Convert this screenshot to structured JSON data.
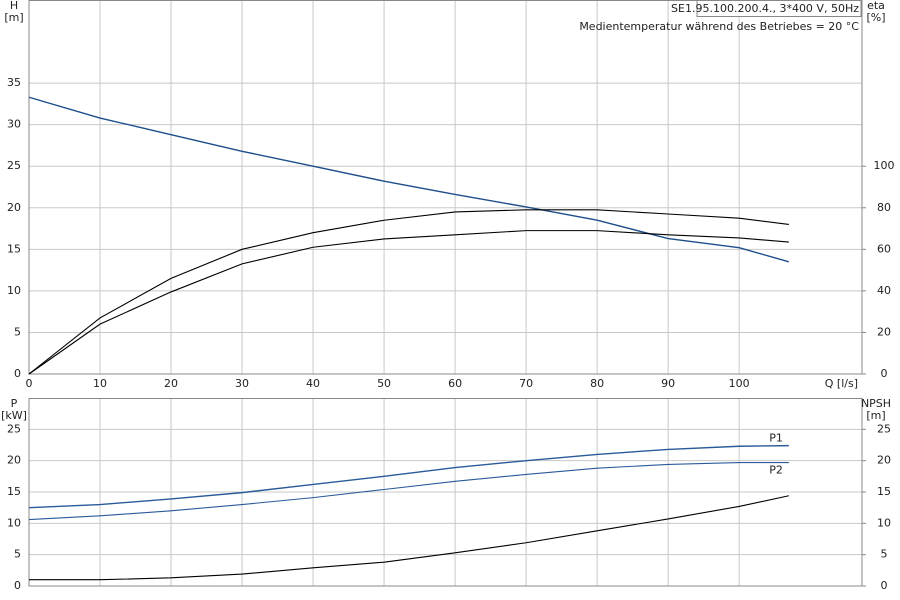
{
  "chart_data": [
    {
      "type": "line",
      "info_box": "SE1.95.100.200.4., 3*400 V, 50Hz",
      "note": "Medientemperatur während des Betriebes = 20 °C",
      "ylabel": "H",
      "yunit": "[m]",
      "y2label": "eta",
      "y2unit": "[%]",
      "xlabel": "Q [l/s]",
      "x": [
        0,
        10,
        20,
        30,
        40,
        50,
        60,
        70,
        80,
        90,
        100,
        107
      ],
      "xlim": [
        0,
        117.3
      ],
      "xticks": [
        0,
        10,
        20,
        30,
        40,
        50,
        60,
        70,
        80,
        90,
        100
      ],
      "xtick_labels": true,
      "ylim": [
        0,
        45
      ],
      "yticks": [
        0,
        5,
        10,
        15,
        20,
        25,
        30,
        35
      ],
      "y2lim": [
        0,
        180
      ],
      "y2ticks": [
        0,
        20,
        40,
        60,
        80,
        100
      ],
      "grid": true,
      "series": [
        {
          "color": "#1f4e8c",
          "values": [
            33.3,
            30.8,
            28.8,
            26.8,
            25.0,
            23.2,
            21.6,
            20.1,
            18.5,
            16.3,
            15.2,
            13.5
          ]
        },
        {
          "color": "#000000",
          "axis": "y2",
          "values": [
            0,
            27,
            46,
            60,
            68,
            74,
            78,
            79,
            79,
            77,
            75,
            72
          ]
        },
        {
          "color": "#000000",
          "axis": "y2",
          "values": [
            0,
            24,
            39.5,
            53,
            61,
            65,
            67,
            69,
            69,
            67,
            65.5,
            63.5
          ]
        }
      ]
    },
    {
      "type": "line",
      "ylabel": "P",
      "yunit": "[kW]",
      "y2label": "NPSH",
      "y2unit": "[m]",
      "x": [
        0,
        10,
        20,
        30,
        40,
        50,
        60,
        70,
        80,
        90,
        100,
        107
      ],
      "xlim": [
        0,
        117.3
      ],
      "xticks": [
        0,
        10,
        20,
        30,
        40,
        50,
        60,
        70,
        80,
        90,
        100
      ],
      "xtick_labels": false,
      "ylim": [
        0,
        30
      ],
      "yticks": [
        0,
        5,
        10,
        15,
        20,
        25
      ],
      "y2lim": [
        0,
        30
      ],
      "y2ticks": [
        0,
        5,
        10,
        15,
        20,
        25
      ],
      "grid": true,
      "series": [
        {
          "name": "P1",
          "color": "#2a5a9a",
          "values": [
            12.5,
            13.0,
            13.9,
            14.9,
            16.2,
            17.5,
            18.9,
            20.0,
            21.0,
            21.8,
            22.3,
            22.4
          ]
        },
        {
          "name": "P2",
          "color": "#2a5a9a",
          "values": [
            10.6,
            11.2,
            12.0,
            13.0,
            14.1,
            15.4,
            16.7,
            17.8,
            18.8,
            19.4,
            19.7,
            19.7
          ]
        },
        {
          "color": "#000000",
          "axis": "y2",
          "values": [
            1.0,
            1.0,
            1.3,
            1.9,
            2.9,
            3.8,
            5.3,
            6.9,
            8.8,
            10.7,
            12.7,
            14.4
          ]
        }
      ]
    }
  ]
}
